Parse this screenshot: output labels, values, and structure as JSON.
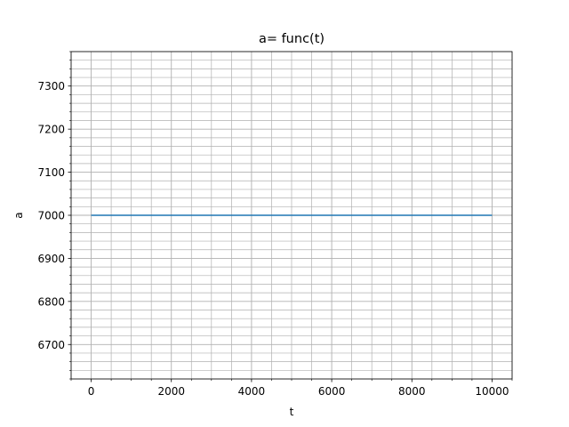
{
  "chart_data": {
    "type": "line",
    "title": "a= func(t)",
    "xlabel": "t",
    "ylabel": "a",
    "xlim": [
      -500,
      10500
    ],
    "ylim": [
      6620,
      7380
    ],
    "x_ticks": [
      0,
      2000,
      4000,
      6000,
      8000,
      10000
    ],
    "y_ticks": [
      6700,
      6800,
      6900,
      7000,
      7100,
      7200,
      7300
    ],
    "x_minor_step": 500,
    "y_minor_step": 20,
    "grid": true,
    "grid_minor": true,
    "series": [
      {
        "x": [
          0,
          10000
        ],
        "values": [
          7000,
          7000
        ],
        "color": "#1f77b4"
      }
    ]
  }
}
